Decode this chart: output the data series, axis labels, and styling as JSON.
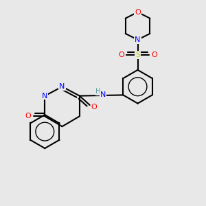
{
  "background_color": "#e8e8e8",
  "atom_colors": {
    "O": "#FF0000",
    "N": "#0000FF",
    "S": "#CCCC00",
    "C": "#000000",
    "H": "#5F9EA0"
  },
  "bond_color": "#000000",
  "bond_width": 1.5
}
